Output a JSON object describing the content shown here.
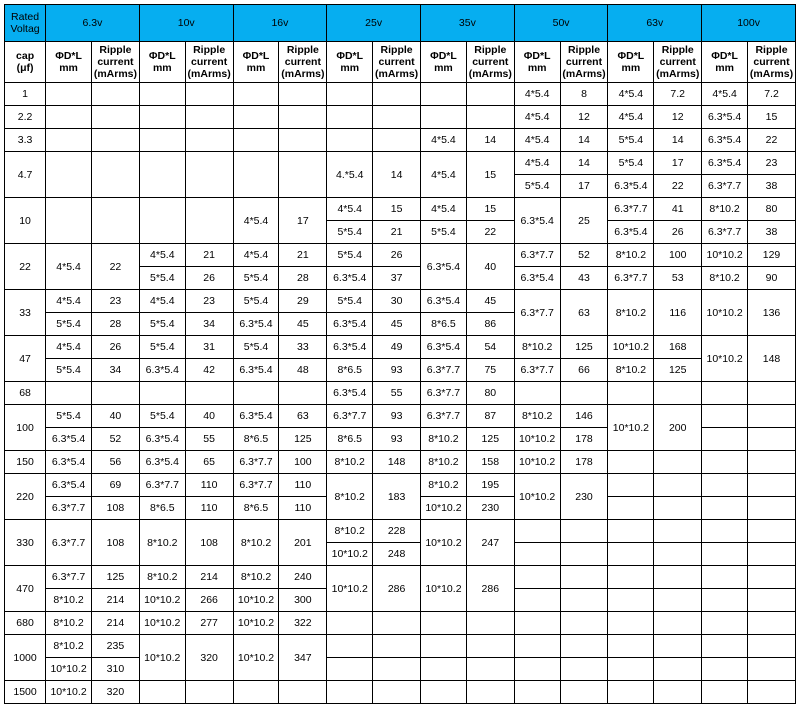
{
  "header": {
    "corner_line1": "Rated",
    "corner_line2": "Voltag",
    "voltages": [
      "6.3v",
      "10v",
      "16v",
      "25v",
      "35v",
      "50v",
      "63v",
      "100v"
    ],
    "sub_dl": "ΦD*L mm",
    "sub_rc_l1": "Ripple",
    "sub_rc_l2": "current",
    "sub_rc_l3": "(mArms)",
    "cap_label": "cap (μf)"
  },
  "caps": [
    "1",
    "2.2",
    "3.3",
    "4.7",
    "4.7b",
    "10",
    "10b",
    "22",
    "22b",
    "33",
    "33b",
    "47",
    "47b",
    "68",
    "100",
    "100b",
    "150",
    "220",
    "220b",
    "330",
    "330b",
    "470",
    "470b",
    "680",
    "1000",
    "1000b",
    "1500"
  ],
  "cells": {
    "1": {
      "50": {
        "d": "4*5.4",
        "r": "8"
      },
      "63": {
        "d": "4*5.4",
        "r": "7.2"
      },
      "100": {
        "d": "4*5.4",
        "r": "7.2"
      }
    },
    "2.2": {
      "50": {
        "d": "4*5.4",
        "r": "12"
      },
      "63": {
        "d": "4*5.4",
        "r": "12"
      },
      "100": {
        "d": "6.3*5.4",
        "r": "15"
      }
    },
    "3.3": {
      "35": {
        "d": "4*5.4",
        "r": "14"
      },
      "50": {
        "d": "4*5.4",
        "r": "14"
      },
      "63": {
        "d": "5*5.4",
        "r": "14"
      },
      "100": {
        "d": "6.3*5.4",
        "r": "22"
      }
    },
    "4.7": {
      "25": {
        "d": "4.*5.4",
        "r": "14",
        "rs": 2
      },
      "35": {
        "d": "4*5.4",
        "r": "15",
        "rs": 2
      },
      "50": {
        "d": "4*5.4",
        "r": "14"
      },
      "63": {
        "d": "5*5.4",
        "r": "17"
      },
      "100": {
        "d": "6.3*5.4",
        "r": "23"
      }
    },
    "4.7b": {
      "50": {
        "d": "5*5.4",
        "r": "17"
      },
      "63": {
        "d": "6.3*5.4",
        "r": "22"
      },
      "100": {
        "d": "6.3*7.7",
        "r": "38"
      }
    },
    "10": {
      "16": {
        "d": "4*5.4",
        "r": "17",
        "rs": 2
      },
      "25": {
        "d": "4*5.4",
        "r": "15"
      },
      "35": {
        "d": "4*5.4",
        "r": "15"
      },
      "50": {
        "d": "6.3*5.4",
        "r": "25",
        "rs": 2
      },
      "63": {
        "d": "6.3*7.7",
        "r": "41"
      },
      "100": {
        "d": "8*10.2",
        "r": "80"
      }
    },
    "10b": {
      "25": {
        "d": "5*5.4",
        "r": "21"
      },
      "35": {
        "d": "5*5.4",
        "r": "22"
      },
      "63": {
        "d": "6.3*5.4",
        "r": "26"
      },
      "100": {
        "d": "6.3*7.7",
        "r": "38"
      }
    },
    "22": {
      "6.3": {
        "d": "4*5.4",
        "r": "22",
        "rs": 2
      },
      "10": {
        "d": "4*5.4",
        "r": "21"
      },
      "16": {
        "d": "4*5.4",
        "r": "21"
      },
      "25": {
        "d": "5*5.4",
        "r": "26"
      },
      "35": {
        "d": "6.3*5.4",
        "r": "40",
        "rs": 2
      },
      "50": {
        "d": "6.3*7.7",
        "r": "52"
      },
      "63": {
        "d": "8*10.2",
        "r": "100"
      },
      "100": {
        "d": "10*10.2",
        "r": "129"
      }
    },
    "22b": {
      "10": {
        "d": "5*5.4",
        "r": "26"
      },
      "16": {
        "d": "5*5.4",
        "r": "28"
      },
      "25": {
        "d": "6.3*5.4",
        "r": "37"
      },
      "50": {
        "d": "6.3*5.4",
        "r": "43"
      },
      "63": {
        "d": "6.3*7.7",
        "r": "53"
      },
      "100": {
        "d": "8*10.2",
        "r": "90"
      }
    },
    "33": {
      "6.3": {
        "d": "4*5.4",
        "r": "23"
      },
      "10": {
        "d": "4*5.4",
        "r": "23"
      },
      "16": {
        "d": "5*5.4",
        "r": "29"
      },
      "25": {
        "d": "5*5.4",
        "r": "30"
      },
      "35": {
        "d": "6.3*5.4",
        "r": "45"
      },
      "50": {
        "d": "6.3*7.7",
        "r": "63",
        "rs": 2
      },
      "63": {
        "d": "8*10.2",
        "r": "116",
        "rs": 2
      },
      "100": {
        "d": "10*10.2",
        "r": "136",
        "rs": 2
      }
    },
    "33b": {
      "6.3": {
        "d": "5*5.4",
        "r": "28"
      },
      "10": {
        "d": "5*5.4",
        "r": "34"
      },
      "16": {
        "d": "6.3*5.4",
        "r": "45"
      },
      "25": {
        "d": "6.3*5.4",
        "r": "45"
      },
      "35": {
        "d": "8*6.5",
        "r": "86"
      }
    },
    "47": {
      "6.3": {
        "d": "4*5.4",
        "r": "26"
      },
      "10": {
        "d": "5*5.4",
        "r": "31"
      },
      "16": {
        "d": "5*5.4",
        "r": "33"
      },
      "25": {
        "d": "6.3*5.4",
        "r": "49"
      },
      "35": {
        "d": "6.3*5.4",
        "r": "54"
      },
      "50": {
        "d": "8*10.2",
        "r": "125"
      },
      "63": {
        "d": "10*10.2",
        "r": "168"
      },
      "100": {
        "d": "10*10.2",
        "r": "148",
        "rs": 2
      }
    },
    "47b": {
      "6.3": {
        "d": "5*5.4",
        "r": "34"
      },
      "10": {
        "d": "6.3*5.4",
        "r": "42"
      },
      "16": {
        "d": "6.3*5.4",
        "r": "48"
      },
      "25": {
        "d": "8*6.5",
        "r": "93"
      },
      "35": {
        "d": "6.3*7.7",
        "r": "75"
      },
      "50": {
        "d": "6.3*7.7",
        "r": "66"
      },
      "63": {
        "d": "8*10.2",
        "r": "125"
      }
    },
    "68": {
      "25": {
        "d": "6.3*5.4",
        "r": "55"
      },
      "35": {
        "d": "6.3*7.7",
        "r": "80"
      }
    },
    "100": {
      "6.3": {
        "d": "5*5.4",
        "r": "40"
      },
      "10": {
        "d": "5*5.4",
        "r": "40"
      },
      "16": {
        "d": "6.3*5.4",
        "r": "63"
      },
      "25": {
        "d": "6.3*7.7",
        "r": "93"
      },
      "35": {
        "d": "6.3*7.7",
        "r": "87"
      },
      "50": {
        "d": "8*10.2",
        "r": "146"
      },
      "63": {
        "d": "10*10.2",
        "r": "200",
        "rs": 2
      }
    },
    "100b": {
      "6.3": {
        "d": "6.3*5.4",
        "r": "52"
      },
      "10": {
        "d": "6.3*5.4",
        "r": "55"
      },
      "16": {
        "d": "8*6.5",
        "r": "125"
      },
      "25": {
        "d": "8*6.5",
        "r": "93"
      },
      "35": {
        "d": "8*10.2",
        "r": "125"
      },
      "50": {
        "d": "10*10.2",
        "r": "178"
      }
    },
    "150": {
      "6.3": {
        "d": "6.3*5.4",
        "r": "56"
      },
      "10": {
        "d": "6.3*5.4",
        "r": "65"
      },
      "16": {
        "d": "6.3*7.7",
        "r": "100"
      },
      "25": {
        "d": "8*10.2",
        "r": "148"
      },
      "35": {
        "d": "8*10.2",
        "r": "158"
      },
      "50": {
        "d": "10*10.2",
        "r": "178"
      }
    },
    "220": {
      "6.3": {
        "d": "6.3*5.4",
        "r": "69"
      },
      "10": {
        "d": "6.3*7.7",
        "r": "110"
      },
      "16": {
        "d": "6.3*7.7",
        "r": "110"
      },
      "25": {
        "d": "8*10.2",
        "r": "183",
        "rs": 2
      },
      "35": {
        "d": "8*10.2",
        "r": "195"
      },
      "50": {
        "d": "10*10.2",
        "r": "230",
        "rs": 2
      }
    },
    "220b": {
      "6.3": {
        "d": "6.3*7.7",
        "r": "108"
      },
      "10": {
        "d": "8*6.5",
        "r": "110"
      },
      "16": {
        "d": "8*6.5",
        "r": "110"
      },
      "35": {
        "d": "10*10.2",
        "r": "230"
      }
    },
    "330": {
      "6.3": {
        "d": "6.3*7.7",
        "r": "108",
        "rs": 2
      },
      "10": {
        "d": "8*10.2",
        "r": "108",
        "rs": 2
      },
      "16": {
        "d": "8*10.2",
        "r": "201",
        "rs": 2
      },
      "25": {
        "d": "8*10.2",
        "r": "228"
      },
      "35": {
        "d": "10*10.2",
        "r": "247",
        "rs": 2
      }
    },
    "330b": {
      "25": {
        "d": "10*10.2",
        "r": "248"
      }
    },
    "470": {
      "6.3": {
        "d": "6.3*7.7",
        "r": "125"
      },
      "10": {
        "d": "8*10.2",
        "r": "214"
      },
      "16": {
        "d": "8*10.2",
        "r": "240"
      },
      "25": {
        "d": "10*10.2",
        "r": "286",
        "rs": 2
      },
      "35": {
        "d": "10*10.2",
        "r": "286",
        "rs": 2
      }
    },
    "470b": {
      "6.3": {
        "d": "8*10.2",
        "r": "214"
      },
      "10": {
        "d": "10*10.2",
        "r": "266"
      },
      "16": {
        "d": "10*10.2",
        "r": "300"
      }
    },
    "680": {
      "6.3": {
        "d": "8*10.2",
        "r": "214"
      },
      "10": {
        "d": "10*10.2",
        "r": "277"
      },
      "16": {
        "d": "10*10.2",
        "r": "322"
      }
    },
    "1000": {
      "6.3": {
        "d": "8*10.2",
        "r": "235"
      },
      "10": {
        "d": "10*10.2",
        "r": "320",
        "rs": 2
      },
      "16": {
        "d": "10*10.2",
        "r": "347",
        "rs": 2
      }
    },
    "1000b": {
      "6.3": {
        "d": "10*10.2",
        "r": "310"
      }
    },
    "1500": {
      "6.3": {
        "d": "10*10.2",
        "r": "320"
      }
    }
  },
  "merges": {
    "4.7": [
      "6.3",
      "10",
      "16"
    ],
    "10": [
      "6.3",
      "10"
    ],
    "220": [],
    "330": [],
    "470": [],
    "1000": []
  },
  "row_labels": {
    "4.7": {
      "label": "4.7",
      "rs": 2
    },
    "10": {
      "label": "10",
      "rs": 2
    },
    "22": {
      "label": "22",
      "rs": 2
    },
    "33": {
      "label": "33",
      "rs": 2
    },
    "47": {
      "label": "47",
      "rs": 2
    },
    "100": {
      "label": "100",
      "rs": 2
    },
    "220": {
      "label": "220",
      "rs": 2
    },
    "330": {
      "label": "330",
      "rs": 2
    },
    "470": {
      "label": "470",
      "rs": 2
    },
    "1000": {
      "label": "1000",
      "rs": 2
    }
  }
}
